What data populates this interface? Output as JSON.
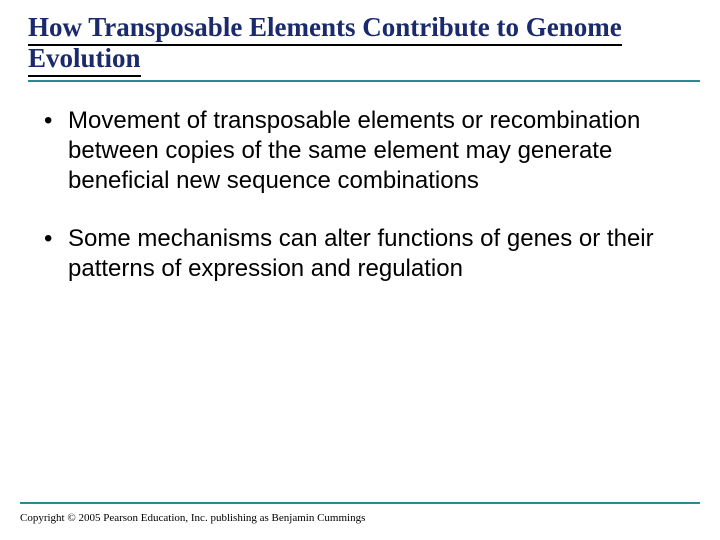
{
  "title": "How Transposable Elements Contribute to Genome Evolution",
  "title_color": "#1a2a6c",
  "title_fontsize": 27,
  "title_fontfamily": "Times New Roman",
  "title_fontweight": "bold",
  "rule_color": "#2a8b8f",
  "bullets": [
    "Movement of transposable elements or recombination between copies of the same element may generate beneficial new sequence combinations",
    "Some mechanisms can alter functions of genes or their patterns of expression and regulation"
  ],
  "bullet_fontsize": 24,
  "bullet_fontfamily": "Arial",
  "bullet_color": "#000000",
  "copyright": "Copyright © 2005 Pearson Education, Inc. publishing as Benjamin Cummings",
  "copyright_fontsize": 11,
  "background_color": "#ffffff"
}
